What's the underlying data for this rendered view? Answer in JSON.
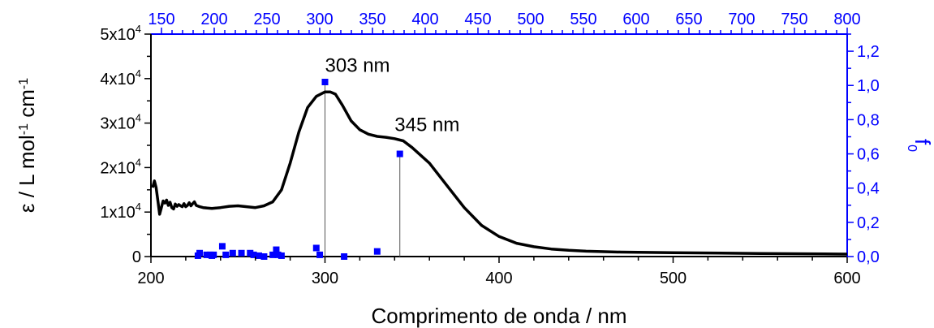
{
  "chart_data": {
    "type": "line",
    "title": "",
    "xlabel": "Comprimento de onda / nm",
    "ylabel_left": "ε / L mol-1 cm-1",
    "ylabel_right": "f0",
    "xlim": [
      200,
      600
    ],
    "ylim_left": [
      0,
      50000
    ],
    "ylim_right": [
      0,
      1.3
    ],
    "x_ticks": [
      "200",
      "300",
      "400",
      "500",
      "600"
    ],
    "y_left_ticks": [
      {
        "value": 0,
        "mant": "0",
        "exp": ""
      },
      {
        "value": 10000,
        "mant": "1x10",
        "exp": "4"
      },
      {
        "value": 20000,
        "mant": "2x10",
        "exp": "4"
      },
      {
        "value": 30000,
        "mant": "3x10",
        "exp": "4"
      },
      {
        "value": 40000,
        "mant": "4x10",
        "exp": "4"
      },
      {
        "value": 50000,
        "mant": "5x10",
        "exp": "4"
      }
    ],
    "y_right_ticks": [
      "0,0",
      "0,2",
      "0,4",
      "0,6",
      "0,8",
      "1,0",
      "1,2"
    ],
    "top_axis_ticks": [
      "150",
      "200",
      "250",
      "300",
      "350",
      "400",
      "450",
      "500",
      "550",
      "600",
      "650",
      "700",
      "750",
      "800"
    ],
    "grid": false,
    "series": [
      {
        "color": "#000000",
        "x": [
          201,
          202,
          203,
          204,
          205,
          206,
          207,
          208,
          209,
          210,
          211,
          212,
          213,
          214,
          215,
          216,
          217,
          218,
          219,
          220,
          221,
          222,
          223,
          224,
          225,
          226,
          228,
          230,
          235,
          240,
          245,
          250,
          255,
          260,
          265,
          270,
          275,
          280,
          285,
          290,
          295,
          300,
          303,
          306,
          310,
          315,
          320,
          325,
          330,
          335,
          340,
          345,
          350,
          360,
          370,
          380,
          390,
          400,
          410,
          420,
          430,
          440,
          450,
          470,
          500,
          550,
          600
        ],
        "y": [
          15500,
          17000,
          15500,
          12500,
          9500,
          11000,
          12500,
          12000,
          12700,
          11500,
          12200,
          11000,
          10700,
          11800,
          11300,
          11700,
          11400,
          11200,
          11900,
          11200,
          11500,
          12100,
          11400,
          11900,
          12300,
          11500,
          11200,
          11000,
          10800,
          11000,
          11300,
          11400,
          11200,
          11000,
          11400,
          12300,
          15000,
          21000,
          28000,
          33500,
          36000,
          37000,
          37000,
          36500,
          34000,
          30500,
          28500,
          27500,
          27000,
          26800,
          26500,
          26000,
          24500,
          21000,
          16000,
          11000,
          7000,
          4500,
          3000,
          2200,
          1700,
          1400,
          1200,
          1000,
          850,
          700,
          550
        ]
      }
    ],
    "oscillator_strengths": {
      "color": "#0000ff",
      "points": [
        {
          "x": 227,
          "f": 0.005
        },
        {
          "x": 228,
          "f": 0.02
        },
        {
          "x": 232,
          "f": 0.01
        },
        {
          "x": 234,
          "f": 0.01
        },
        {
          "x": 235,
          "f": 0.005
        },
        {
          "x": 236,
          "f": 0.01
        },
        {
          "x": 241,
          "f": 0.06
        },
        {
          "x": 243,
          "f": 0.01
        },
        {
          "x": 247,
          "f": 0.02
        },
        {
          "x": 252,
          "f": 0.02
        },
        {
          "x": 257,
          "f": 0.02
        },
        {
          "x": 259,
          "f": 0.01
        },
        {
          "x": 262,
          "f": 0.005
        },
        {
          "x": 265,
          "f": 0.0
        },
        {
          "x": 270,
          "f": 0.01
        },
        {
          "x": 272,
          "f": 0.04
        },
        {
          "x": 273,
          "f": 0.01
        },
        {
          "x": 275,
          "f": 0.005
        },
        {
          "x": 295,
          "f": 0.05
        },
        {
          "x": 297,
          "f": 0.01
        },
        {
          "x": 300,
          "f": 1.02
        },
        {
          "x": 311,
          "f": 0.0
        },
        {
          "x": 330,
          "f": 0.03
        },
        {
          "x": 343,
          "f": 0.6
        }
      ],
      "stick_x": [
        300,
        343
      ]
    },
    "annotations": [
      {
        "text": "303 nm",
        "x": 300,
        "y": 41500
      },
      {
        "text": "345 nm",
        "x": 340,
        "y": 28200
      }
    ]
  }
}
